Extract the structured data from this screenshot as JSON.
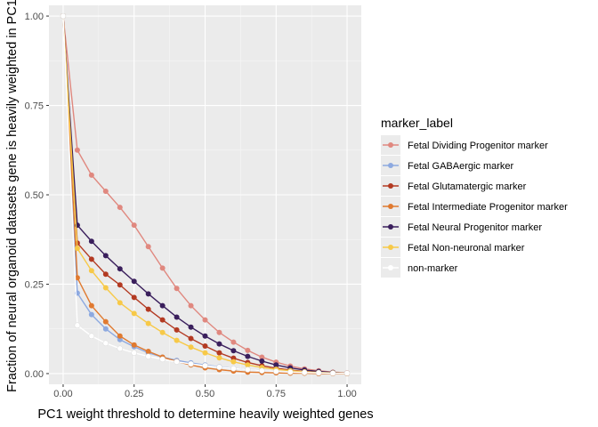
{
  "chart_data": {
    "type": "line",
    "title": "",
    "xlabel": "PC1 weight threshold to determine heavily weighted genes",
    "ylabel": "Fraction of neural organoid datasets gene is heavily weighted in PC1",
    "xlim": [
      -0.05,
      1.05
    ],
    "ylim": [
      -0.03,
      1.03
    ],
    "x_ticks": [
      0.0,
      0.25,
      0.5,
      0.75,
      1.0
    ],
    "x_tick_labels": [
      "0.00",
      "0.25",
      "0.50",
      "0.75",
      "1.00"
    ],
    "y_ticks": [
      0.0,
      0.25,
      0.5,
      0.75,
      1.0
    ],
    "y_tick_labels": [
      "0.00",
      "0.25",
      "0.50",
      "0.75",
      "1.00"
    ],
    "grid": true,
    "legend_title": "marker_label",
    "legend_position": "right",
    "x": [
      0.0,
      0.05,
      0.1,
      0.15,
      0.2,
      0.25,
      0.3,
      0.35,
      0.4,
      0.45,
      0.5,
      0.55,
      0.6,
      0.65,
      0.7,
      0.75,
      0.8,
      0.85,
      0.9,
      0.95,
      1.0
    ],
    "series": [
      {
        "name": "Fetal Dividing Progenitor marker",
        "color": "#E0887F",
        "values": [
          1.0,
          0.625,
          0.555,
          0.51,
          0.465,
          0.415,
          0.355,
          0.295,
          0.238,
          0.19,
          0.15,
          0.115,
          0.088,
          0.065,
          0.046,
          0.032,
          0.021,
          0.013,
          0.008,
          0.004,
          0.002
        ]
      },
      {
        "name": "Fetal GABAergic marker",
        "color": "#8DA9E0",
        "values": [
          1.0,
          0.225,
          0.165,
          0.125,
          0.095,
          0.075,
          0.058,
          0.046,
          0.037,
          0.03,
          0.024,
          0.019,
          0.014,
          0.011,
          0.008,
          0.006,
          0.004,
          0.003,
          0.002,
          0.001,
          0.001
        ]
      },
      {
        "name": "Fetal Glutamatergic marker",
        "color": "#B33A22",
        "values": [
          1.0,
          0.365,
          0.32,
          0.278,
          0.248,
          0.213,
          0.18,
          0.15,
          0.122,
          0.098,
          0.077,
          0.058,
          0.043,
          0.031,
          0.022,
          0.015,
          0.01,
          0.006,
          0.004,
          0.002,
          0.001
        ]
      },
      {
        "name": "Fetal Intermediate Progenitor marker",
        "color": "#E07A30",
        "values": [
          1.0,
          0.268,
          0.19,
          0.145,
          0.105,
          0.08,
          0.062,
          0.046,
          0.034,
          0.024,
          0.016,
          0.011,
          0.007,
          0.004,
          0.003,
          0.002,
          0.001,
          0.001,
          0.0,
          0.0,
          0.0
        ]
      },
      {
        "name": "Fetal Neural Progenitor marker",
        "color": "#3A1F5C",
        "values": [
          1.0,
          0.415,
          0.37,
          0.33,
          0.293,
          0.258,
          0.223,
          0.19,
          0.158,
          0.13,
          0.105,
          0.083,
          0.064,
          0.048,
          0.035,
          0.024,
          0.016,
          0.01,
          0.006,
          0.003,
          0.001
        ]
      },
      {
        "name": "Fetal Non-neuronal marker",
        "color": "#F7C948",
        "values": [
          1.0,
          0.35,
          0.288,
          0.24,
          0.198,
          0.168,
          0.14,
          0.115,
          0.093,
          0.074,
          0.058,
          0.044,
          0.033,
          0.024,
          0.017,
          0.012,
          0.008,
          0.005,
          0.003,
          0.002,
          0.001
        ]
      },
      {
        "name": "non-marker",
        "color": "#FFFFFF",
        "values": [
          1.0,
          0.135,
          0.105,
          0.085,
          0.07,
          0.058,
          0.048,
          0.04,
          0.033,
          0.027,
          0.022,
          0.018,
          0.014,
          0.011,
          0.008,
          0.006,
          0.004,
          0.003,
          0.002,
          0.001,
          0.001
        ]
      }
    ]
  }
}
